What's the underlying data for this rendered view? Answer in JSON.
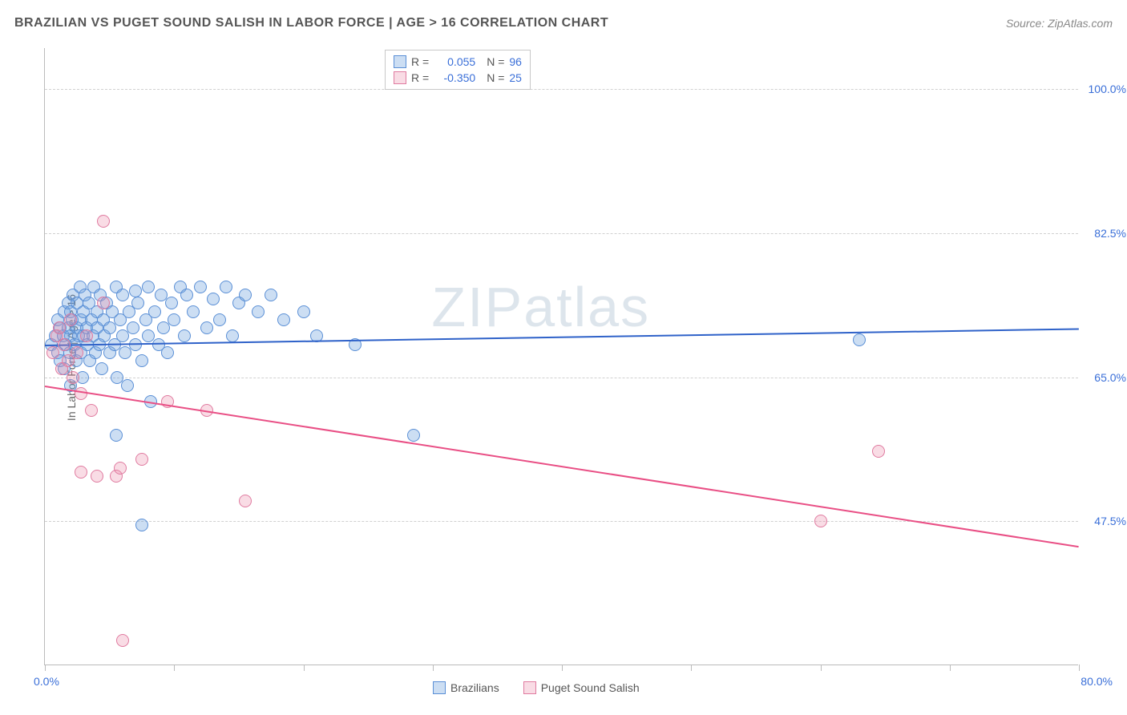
{
  "title": "BRAZILIAN VS PUGET SOUND SALISH IN LABOR FORCE | AGE > 16 CORRELATION CHART",
  "source": "Source: ZipAtlas.com",
  "ylabel": "In Labor Force | Age > 16",
  "watermark": "ZIPatlas",
  "chart": {
    "type": "scatter",
    "xlim": [
      0,
      80
    ],
    "ylim": [
      30,
      105
    ],
    "x_ticks": [
      0,
      10,
      20,
      30,
      40,
      50,
      60,
      70,
      80
    ],
    "y_gridlines": [
      47.5,
      65.0,
      82.5,
      100.0
    ],
    "y_tick_labels": [
      "47.5%",
      "65.0%",
      "82.5%",
      "100.0%"
    ],
    "x_axis_label_left": "0.0%",
    "x_axis_label_right": "80.0%",
    "axis_label_color": "#3a6fd8",
    "grid_color": "#d0d0d0",
    "axis_color": "#bbbbbb",
    "background_color": "#ffffff"
  },
  "series": [
    {
      "name": "Brazilians",
      "R": "0.055",
      "N": "96",
      "fill": "rgba(110,160,220,0.35)",
      "stroke": "#5a8fd6",
      "line_color": "#2f62c9",
      "marker_radius": 8,
      "reg_line": {
        "x1": 0,
        "y1": 69.0,
        "x2": 80,
        "y2": 71.0
      },
      "points": [
        [
          0.5,
          69
        ],
        [
          0.8,
          70
        ],
        [
          1.0,
          68
        ],
        [
          1.0,
          72
        ],
        [
          1.2,
          67
        ],
        [
          1.2,
          71
        ],
        [
          1.4,
          70
        ],
        [
          1.5,
          73
        ],
        [
          1.5,
          66
        ],
        [
          1.6,
          69
        ],
        [
          1.8,
          71
        ],
        [
          1.8,
          74
        ],
        [
          1.9,
          68
        ],
        [
          2.0,
          70
        ],
        [
          2.0,
          73
        ],
        [
          2.0,
          64
        ],
        [
          2.1,
          72
        ],
        [
          2.2,
          75
        ],
        [
          2.3,
          69
        ],
        [
          2.4,
          67
        ],
        [
          2.5,
          71
        ],
        [
          2.5,
          74
        ],
        [
          2.6,
          70
        ],
        [
          2.7,
          76
        ],
        [
          2.8,
          72
        ],
        [
          2.8,
          68
        ],
        [
          2.9,
          65
        ],
        [
          3.0,
          73
        ],
        [
          3.0,
          70
        ],
        [
          3.1,
          75
        ],
        [
          3.2,
          71
        ],
        [
          3.3,
          69
        ],
        [
          3.4,
          74
        ],
        [
          3.5,
          67
        ],
        [
          3.6,
          72
        ],
        [
          3.7,
          70
        ],
        [
          3.8,
          76
        ],
        [
          3.9,
          68
        ],
        [
          4.0,
          73
        ],
        [
          4.0,
          71
        ],
        [
          4.2,
          69
        ],
        [
          4.3,
          75
        ],
        [
          4.4,
          66
        ],
        [
          4.5,
          72
        ],
        [
          4.6,
          70
        ],
        [
          4.8,
          74
        ],
        [
          5.0,
          68
        ],
        [
          5.0,
          71
        ],
        [
          5.2,
          73
        ],
        [
          5.4,
          69
        ],
        [
          5.5,
          76
        ],
        [
          5.6,
          65
        ],
        [
          5.8,
          72
        ],
        [
          6.0,
          70
        ],
        [
          6.0,
          75
        ],
        [
          6.2,
          68
        ],
        [
          6.4,
          64
        ],
        [
          6.5,
          73
        ],
        [
          6.8,
          71
        ],
        [
          7.0,
          69
        ],
        [
          7.0,
          75.5
        ],
        [
          7.2,
          74
        ],
        [
          7.5,
          67
        ],
        [
          7.8,
          72
        ],
        [
          8.0,
          70
        ],
        [
          8.0,
          76
        ],
        [
          8.2,
          62
        ],
        [
          8.5,
          73
        ],
        [
          8.8,
          69
        ],
        [
          9.0,
          75
        ],
        [
          9.2,
          71
        ],
        [
          9.5,
          68
        ],
        [
          9.8,
          74
        ],
        [
          10.0,
          72
        ],
        [
          10.5,
          76
        ],
        [
          10.8,
          70
        ],
        [
          11.0,
          75
        ],
        [
          11.5,
          73
        ],
        [
          12.0,
          76
        ],
        [
          12.5,
          71
        ],
        [
          13.0,
          74.5
        ],
        [
          13.5,
          72
        ],
        [
          14.0,
          76
        ],
        [
          14.5,
          70
        ],
        [
          15.0,
          74
        ],
        [
          15.5,
          75
        ],
        [
          16.5,
          73
        ],
        [
          17.5,
          75
        ],
        [
          18.5,
          72
        ],
        [
          20.0,
          73
        ],
        [
          21.0,
          70
        ],
        [
          24.0,
          69
        ],
        [
          5.5,
          58
        ],
        [
          7.5,
          47
        ],
        [
          28.5,
          58
        ],
        [
          63.0,
          69.5
        ]
      ]
    },
    {
      "name": "Puget Sound Salish",
      "R": "-0.350",
      "N": "25",
      "fill": "rgba(235,140,170,0.30)",
      "stroke": "#e07ba0",
      "line_color": "#e94f85",
      "marker_radius": 8,
      "reg_line": {
        "x1": 0,
        "y1": 64.0,
        "x2": 80,
        "y2": 44.5
      },
      "points": [
        [
          0.6,
          68
        ],
        [
          0.9,
          70
        ],
        [
          1.1,
          71
        ],
        [
          1.3,
          66
        ],
        [
          1.5,
          69
        ],
        [
          1.8,
          67
        ],
        [
          2.0,
          72
        ],
        [
          2.2,
          65
        ],
        [
          2.5,
          68
        ],
        [
          2.8,
          63
        ],
        [
          3.2,
          70
        ],
        [
          3.6,
          61
        ],
        [
          4.5,
          74
        ],
        [
          5.5,
          53
        ],
        [
          5.8,
          54
        ],
        [
          2.8,
          53.5
        ],
        [
          4.0,
          53
        ],
        [
          9.5,
          62
        ],
        [
          12.5,
          61
        ],
        [
          15.5,
          50
        ],
        [
          4.5,
          84
        ],
        [
          60.0,
          47.5
        ],
        [
          64.5,
          56
        ],
        [
          6.0,
          33
        ],
        [
          7.5,
          55
        ]
      ]
    }
  ],
  "legend_top": {
    "r_label": "R =",
    "n_label": "N =",
    "value_color": "#3a6fd8",
    "text_color": "#555555"
  },
  "legend_bottom": {
    "items": [
      "Brazilians",
      "Puget Sound Salish"
    ]
  }
}
